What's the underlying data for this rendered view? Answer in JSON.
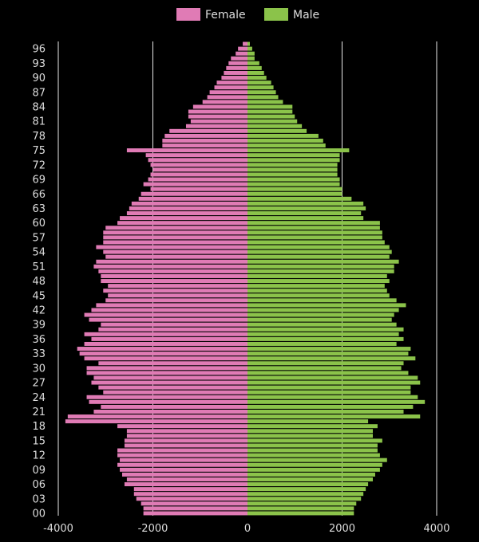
{
  "chart_data": {
    "type": "bar",
    "orientation": "horizontal",
    "layout": "population-pyramid",
    "xlim": [
      -4000,
      4000
    ],
    "x_ticks": [
      -4000,
      -2000,
      0,
      2000,
      4000
    ],
    "x_tick_labels": [
      "-4000",
      "-2000",
      "0",
      "2000",
      "4000"
    ],
    "grid": true,
    "legend_position": "top-center",
    "categories": [
      "00",
      "01",
      "02",
      "03",
      "04",
      "05",
      "06",
      "07",
      "08",
      "09",
      "10",
      "11",
      "12",
      "13",
      "14",
      "15",
      "16",
      "17",
      "18",
      "19",
      "20",
      "21",
      "22",
      "23",
      "24",
      "25",
      "26",
      "27",
      "28",
      "29",
      "30",
      "31",
      "32",
      "33",
      "34",
      "35",
      "36",
      "37",
      "38",
      "39",
      "40",
      "41",
      "42",
      "43",
      "44",
      "45",
      "46",
      "47",
      "48",
      "49",
      "50",
      "51",
      "52",
      "53",
      "54",
      "55",
      "56",
      "57",
      "58",
      "59",
      "60",
      "61",
      "62",
      "63",
      "64",
      "65",
      "66",
      "67",
      "68",
      "69",
      "70",
      "71",
      "72",
      "73",
      "74",
      "75",
      "76",
      "77",
      "78",
      "79",
      "80",
      "81",
      "82",
      "83",
      "84",
      "85",
      "86",
      "87",
      "88",
      "89",
      "90",
      "91",
      "92",
      "93",
      "94",
      "95",
      "96",
      "97"
    ],
    "y_tick_labels": [
      "00",
      "03",
      "06",
      "09",
      "12",
      "15",
      "18",
      "21",
      "24",
      "27",
      "30",
      "33",
      "36",
      "39",
      "42",
      "45",
      "48",
      "51",
      "54",
      "57",
      "60",
      "63",
      "66",
      "69",
      "72",
      "75",
      "78",
      "81",
      "84",
      "87",
      "90",
      "93",
      "96"
    ],
    "series": [
      {
        "name": "Female",
        "color": "#e07bb5",
        "values": [
          2200,
          2200,
          2250,
          2350,
          2400,
          2400,
          2600,
          2550,
          2650,
          2700,
          2750,
          2700,
          2750,
          2750,
          2600,
          2600,
          2550,
          2550,
          2750,
          3850,
          3800,
          3250,
          3100,
          3350,
          3400,
          3050,
          3150,
          3300,
          3250,
          3400,
          3400,
          3150,
          3450,
          3550,
          3600,
          3450,
          3300,
          3450,
          3150,
          3100,
          3350,
          3450,
          3300,
          3200,
          3000,
          2950,
          3050,
          2950,
          3100,
          3100,
          3150,
          3250,
          3200,
          3000,
          3050,
          3200,
          3050,
          3050,
          3050,
          3000,
          2750,
          2700,
          2550,
          2500,
          2450,
          2300,
          2250,
          2050,
          2200,
          2100,
          2050,
          2000,
          2050,
          2100,
          2150,
          2550,
          1800,
          1800,
          1750,
          1650,
          1300,
          1200,
          1250,
          1250,
          1150,
          950,
          850,
          800,
          700,
          650,
          550,
          500,
          450,
          400,
          350,
          250,
          200,
          100
        ]
      },
      {
        "name": "Male",
        "color": "#8bc34a",
        "values": [
          2250,
          2250,
          2300,
          2400,
          2450,
          2500,
          2550,
          2650,
          2700,
          2800,
          2850,
          2950,
          2800,
          2750,
          2750,
          2850,
          2650,
          2650,
          2750,
          2550,
          3650,
          3300,
          3500,
          3750,
          3600,
          3450,
          3450,
          3650,
          3600,
          3400,
          3250,
          3300,
          3550,
          3400,
          3450,
          3150,
          3300,
          3200,
          3300,
          3150,
          3050,
          3100,
          3200,
          3350,
          3150,
          3000,
          2950,
          2900,
          3000,
          2950,
          3100,
          3100,
          3200,
          3000,
          3050,
          3000,
          2900,
          2850,
          2850,
          2800,
          2800,
          2450,
          2400,
          2500,
          2450,
          2200,
          2000,
          2000,
          1950,
          1950,
          1900,
          1900,
          1900,
          1950,
          1950,
          2150,
          1650,
          1600,
          1500,
          1250,
          1150,
          1050,
          1000,
          950,
          950,
          750,
          650,
          600,
          550,
          500,
          400,
          350,
          300,
          250,
          150,
          150,
          100,
          50
        ]
      }
    ]
  }
}
